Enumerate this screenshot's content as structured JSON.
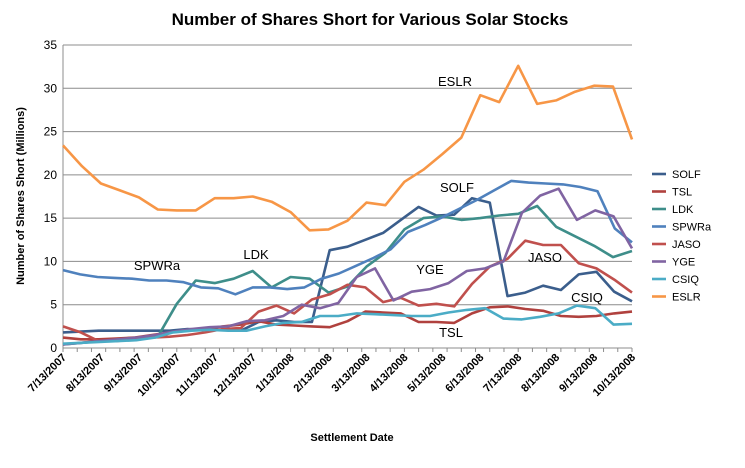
{
  "chart_data": {
    "type": "line",
    "title": "Number of Shares Short for Various Solar Stocks",
    "xlabel": "Settlement Date",
    "ylabel": "Number of Shares  Short (Millions)",
    "ylim": [
      0,
      35
    ],
    "yticks": [
      "0",
      "5",
      "10",
      "15",
      "20",
      "25",
      "30",
      "35"
    ],
    "grid": "horizontal",
    "legend_position": "right",
    "x_count": 41,
    "x_tick_labels": [
      "7/13/2007",
      "8/13/2007",
      "9/13/2007",
      "10/13/2007",
      "11/13/2007",
      "12/13/2007",
      "1/13/2008",
      "2/13/2008",
      "3/13/2008",
      "4/13/2008",
      "5/13/2008",
      "6/13/2008",
      "7/13/2008",
      "8/13/2008",
      "9/13/2008",
      "10/13/2008"
    ],
    "series": [
      {
        "name": "SOLF",
        "color": "#3B5E8C",
        "values": [
          1.8,
          1.9,
          2.0,
          2.0,
          2.0,
          2.0,
          2.0,
          2.2,
          2.1,
          2.1,
          2.0,
          3.0,
          3.2,
          3.0,
          3.0,
          11.3,
          11.7,
          12.5,
          13.3,
          14.8,
          16.3,
          15.3,
          15.4,
          17.3,
          16.8,
          6.0,
          6.4,
          7.2,
          6.7,
          8.5,
          8.8,
          6.5,
          5.4
        ]
      },
      {
        "name": "TSL",
        "color": "#B0413E",
        "values": [
          1.2,
          1.0,
          1.0,
          1.1,
          1.2,
          1.5,
          1.8,
          2.0,
          2.2,
          2.5,
          2.7,
          3.1,
          2.7,
          2.6,
          2.5,
          2.4,
          3.1,
          4.2,
          4.1,
          4.0,
          3.0,
          3.0,
          2.9,
          4.0,
          4.7,
          4.8,
          4.5,
          4.3,
          3.7,
          3.6,
          3.7,
          4.0,
          4.2
        ]
      },
      {
        "name": "LDK",
        "color": "#3E8E8A",
        "values": [
          0.4,
          0.6,
          0.8,
          0.9,
          1.1,
          1.3,
          5.1,
          7.8,
          7.5,
          8.0,
          8.9,
          7.0,
          8.2,
          8.0,
          6.4,
          7.1,
          9.4,
          11.0,
          13.7,
          15.0,
          15.2,
          14.8,
          15.0,
          15.3,
          15.5,
          16.4,
          14.0,
          12.9,
          11.8,
          10.5,
          11.2
        ]
      },
      {
        "name": "SPWRa",
        "color": "#4F81BD",
        "values": [
          9.0,
          8.5,
          8.2,
          8.1,
          8.0,
          7.8,
          7.8,
          7.6,
          7.0,
          6.9,
          6.2,
          7.0,
          7.0,
          6.8,
          7.0,
          8.0,
          8.6,
          9.5,
          10.4,
          11.4,
          13.4,
          14.2,
          15.1,
          16.1,
          17.1,
          18.2,
          19.3,
          19.1,
          19.0,
          18.9,
          18.6,
          18.1,
          13.8,
          12.2
        ]
      },
      {
        "name": "JASO",
        "color": "#C0504D",
        "values": [
          2.5,
          1.8,
          0.8,
          0.8,
          1.0,
          1.2,
          1.3,
          1.5,
          1.8,
          2.2,
          2.3,
          4.2,
          4.9,
          4.0,
          5.6,
          6.2,
          7.3,
          7.0,
          5.3,
          5.8,
          4.9,
          5.1,
          4.8,
          7.4,
          9.4,
          10.3,
          12.4,
          11.9,
          11.9,
          9.8,
          9.2,
          7.9,
          6.4
        ]
      },
      {
        "name": "YGE",
        "color": "#8064A2",
        "values": [
          0.4,
          0.6,
          0.8,
          1.0,
          1.2,
          1.5,
          1.9,
          2.2,
          2.4,
          2.5,
          3.1,
          3.2,
          3.7,
          5.0,
          4.6,
          5.2,
          8.2,
          9.2,
          5.5,
          6.5,
          6.8,
          7.5,
          8.9,
          9.2,
          10.0,
          15.6,
          17.6,
          18.4,
          14.8,
          15.9,
          15.2,
          11.5
        ]
      },
      {
        "name": "CSIQ",
        "color": "#4BACC6",
        "values": [
          0.5,
          0.6,
          0.7,
          0.8,
          0.9,
          1.2,
          1.8,
          2.0,
          2.1,
          2.0,
          2.0,
          2.5,
          2.9,
          3.0,
          3.7,
          3.7,
          4.0,
          3.9,
          3.8,
          3.7,
          3.7,
          4.1,
          4.4,
          4.6,
          3.4,
          3.3,
          3.6,
          4.0,
          4.9,
          4.6,
          2.7,
          2.8
        ]
      },
      {
        "name": "ESLR",
        "color": "#F79646",
        "values": [
          23.4,
          21.0,
          19.0,
          18.2,
          17.4,
          16.0,
          15.9,
          15.9,
          17.3,
          17.3,
          17.5,
          16.9,
          15.7,
          13.6,
          13.7,
          14.7,
          16.8,
          16.5,
          19.2,
          20.6,
          22.4,
          24.3,
          29.2,
          28.4,
          32.6,
          28.2,
          28.6,
          29.6,
          30.3,
          30.2,
          24.1
        ]
      }
    ],
    "annotations": [
      {
        "text": "ESLR",
        "series": "ESLR"
      },
      {
        "text": "SOLF",
        "series": "SOLF"
      },
      {
        "text": "SPWRa",
        "series": "SPWRa"
      },
      {
        "text": "LDK",
        "series": "LDK"
      },
      {
        "text": "YGE",
        "series": "YGE"
      },
      {
        "text": "JASO",
        "series": "JASO"
      },
      {
        "text": "CSIQ",
        "series": "CSIQ"
      },
      {
        "text": "TSL",
        "series": "TSL"
      }
    ]
  }
}
